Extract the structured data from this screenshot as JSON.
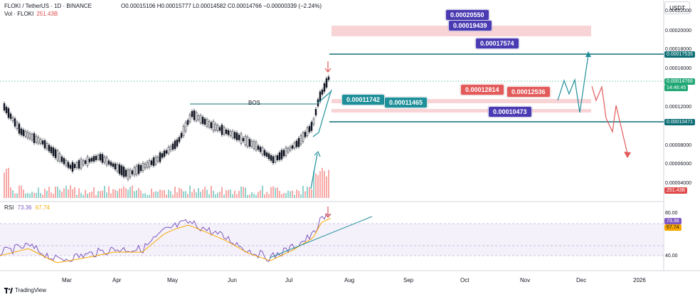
{
  "header": {
    "pair": "FLOKI / TetherUS · 1D · BINANCE",
    "ohlc": "O0.00015106 H0.00015777 L0.00014582 C0.00014766 −0.00000339 (−2.24%)",
    "vol_label": "Vol · FLOKI",
    "vol_value": "251.43B"
  },
  "unit_label": "USDT",
  "price_axis": [
    "0.00022000",
    "0.00020000",
    "0.00018000",
    "0.00016000",
    "0.00012000",
    "0.00008000",
    "0.00006000",
    "0.00004000"
  ],
  "price_tags": {
    "level_top": {
      "text": "0.00017535",
      "color": "#0d6f75"
    },
    "current": {
      "text": "0.00014766",
      "color": "#22a876"
    },
    "countdown": {
      "text": "14:46:45",
      "color": "#22a876"
    },
    "level_bottom": {
      "text": "0.00010471",
      "color": "#0d6f75"
    },
    "volume": {
      "text": "251.43B",
      "color": "#e04a4a"
    }
  },
  "annotations": {
    "a1": "0.00020550",
    "a2": "0.00019439",
    "a3": "0.00017574",
    "a4": "0.00011742",
    "a5": "0.00011465",
    "a6": "0.00012814",
    "a7": "0.00012536",
    "a8": "0.00010473",
    "bos": "BOS"
  },
  "rsi": {
    "label": "RSI",
    "value1": "73.36",
    "value2": "67.74",
    "value1_color": "#7e57c2",
    "value2_color": "#f7a800",
    "axis": [
      "80.00",
      "40.00"
    ],
    "tag1": "73.36",
    "tag2": "67.74"
  },
  "time_axis": [
    "Mar",
    "Apr",
    "May",
    "Jun",
    "Jul",
    "Aug",
    "Sep",
    "Oct",
    "Nov",
    "Dec",
    "2026"
  ],
  "footer": "TradingView",
  "colors": {
    "teal": "#0d6f75",
    "up": "#131722",
    "purple": "#4b3bb3",
    "red": "#e35a5a"
  }
}
